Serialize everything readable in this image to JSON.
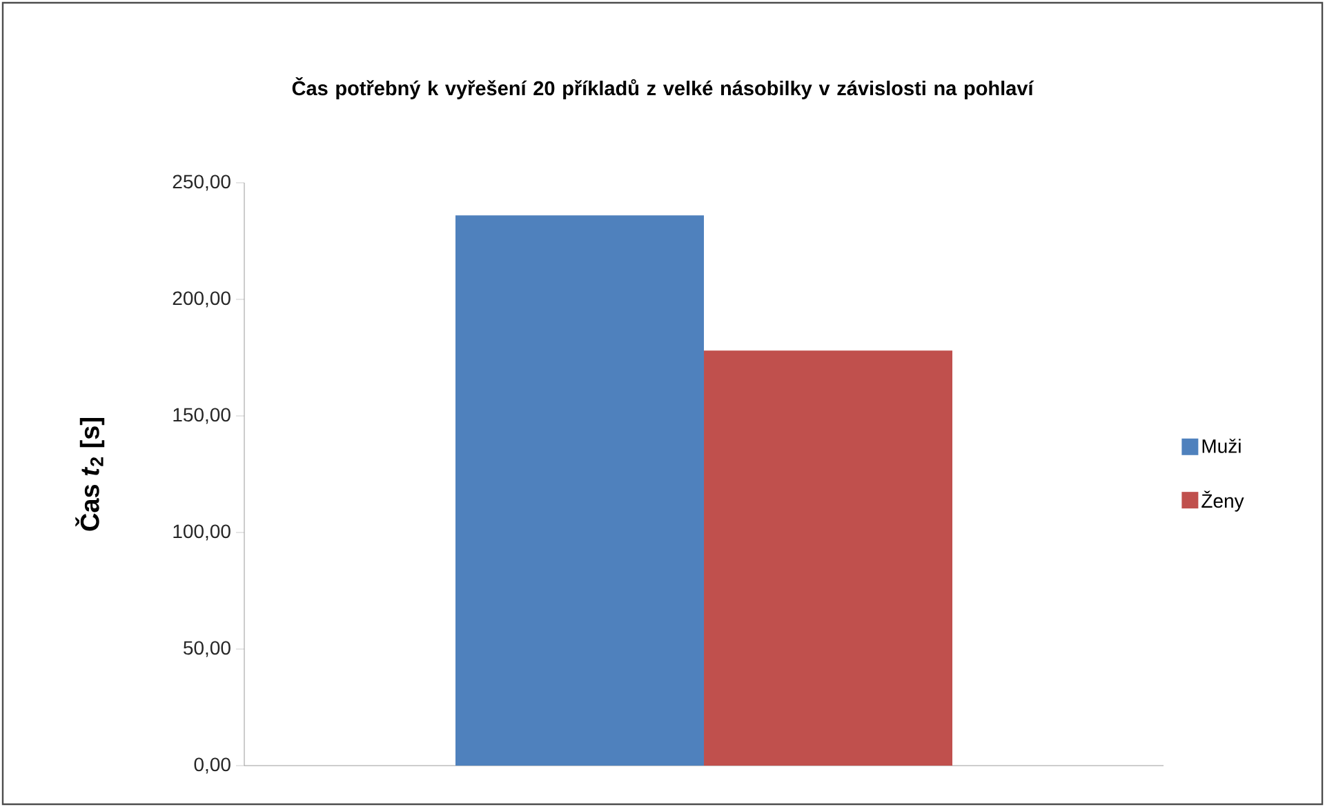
{
  "chart_data": {
    "type": "bar",
    "title": "Čas potřebný k vyřešení 20 příkladů z velké násobilky v závislosti  na pohlaví",
    "ylabel": "Čas  *t*$_{2}$ [s]",
    "categories": [
      null
    ],
    "series": [
      {
        "name": "Muži",
        "color": "#4f81bd",
        "values": [
          236
        ]
      },
      {
        "name": "Ženy",
        "color": "#c0504d",
        "values": [
          178
        ]
      }
    ],
    "ylim": [
      0,
      250
    ],
    "yticks": [
      {
        "value": 0,
        "label": "0,00"
      },
      {
        "value": 50,
        "label": "50,00"
      },
      {
        "value": 100,
        "label": "100,00"
      },
      {
        "value": 150,
        "label": "150,00"
      },
      {
        "value": 200,
        "label": "200,00"
      },
      {
        "value": 250,
        "label": "250,00"
      }
    ],
    "legend": "right"
  }
}
